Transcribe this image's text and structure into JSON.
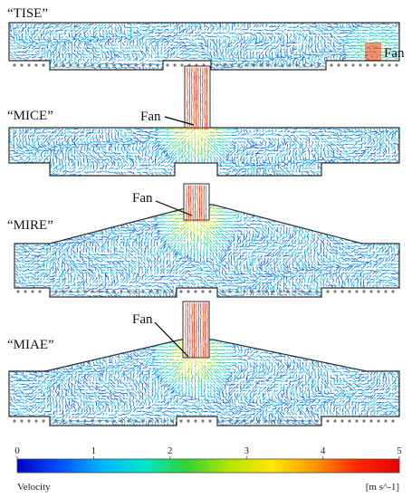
{
  "panels": [
    {
      "id": "tise",
      "label": "“TISE”",
      "fan_label": "Fan"
    },
    {
      "id": "mice",
      "label": "“MICE”",
      "fan_label": "Fan"
    },
    {
      "id": "mire",
      "label": "“MIRE”",
      "fan_label": "Fan"
    },
    {
      "id": "miae",
      "label": "“MIAE”",
      "fan_label": "Fan"
    }
  ],
  "colorbar": {
    "ticks": [
      "0",
      "1",
      "2",
      "3",
      "4",
      "5"
    ],
    "min": 0,
    "max": 5,
    "title": "Velocity",
    "unit": "[m s^-1]",
    "colors": [
      "#0000c8",
      "#0050ff",
      "#00b4ff",
      "#00e6c8",
      "#32d232",
      "#b4e600",
      "#ffe600",
      "#ff9600",
      "#ff2800",
      "#e60000"
    ]
  }
}
